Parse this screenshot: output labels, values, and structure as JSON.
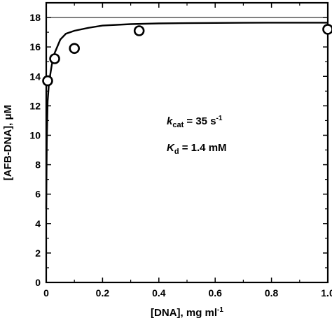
{
  "chart_data": {
    "type": "scatter",
    "xlabel": "[DNA], mg ml",
    "xlabel_sup": "-1",
    "ylabel": "[AFB-DNA], μM",
    "xlim": [
      0,
      1.0
    ],
    "ylim": [
      0,
      19
    ],
    "x_ticks": [
      "0",
      "0.2",
      "0.4",
      "0.6",
      "0.8",
      "1.0"
    ],
    "x_tick_values": [
      0,
      0.2,
      0.4,
      0.6,
      0.8,
      1.0
    ],
    "y_ticks": [
      "0",
      "2",
      "4",
      "6",
      "8",
      "10",
      "12",
      "14",
      "16",
      "18"
    ],
    "y_tick_values": [
      0,
      2,
      4,
      6,
      8,
      10,
      12,
      14,
      16,
      18
    ],
    "grid": false,
    "reference_line_y": 18,
    "points": {
      "x": [
        0.005,
        0.03,
        0.1,
        0.33,
        1.0
      ],
      "y": [
        13.7,
        15.2,
        15.9,
        17.1,
        17.2
      ]
    },
    "fit_curve": {
      "x": [
        0.0,
        0.002,
        0.005,
        0.01,
        0.02,
        0.03,
        0.05,
        0.07,
        0.1,
        0.15,
        0.2,
        0.3,
        0.4,
        0.5,
        0.6,
        0.7,
        0.8,
        0.9,
        1.0
      ],
      "y": [
        5.0,
        9.5,
        12.3,
        13.6,
        14.8,
        15.6,
        16.5,
        16.9,
        17.1,
        17.3,
        17.45,
        17.55,
        17.6,
        17.62,
        17.63,
        17.64,
        17.65,
        17.65,
        17.65
      ]
    },
    "annotations": {
      "kcat": {
        "symbol": "k",
        "sub": "cat",
        "text": " = 35 s",
        "sup": "-1"
      },
      "kd": {
        "symbol": "K",
        "sub": "d",
        "text": " = 1.4 mM"
      }
    }
  }
}
